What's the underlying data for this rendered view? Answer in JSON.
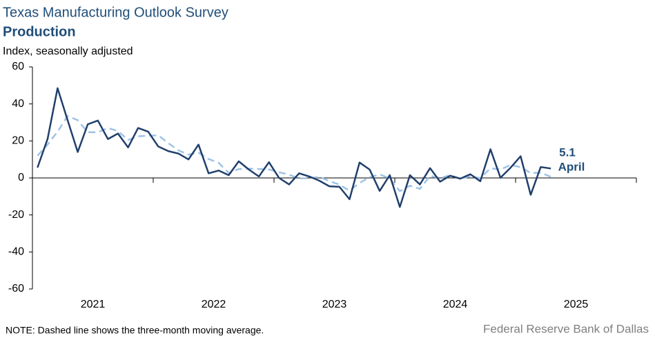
{
  "chart_data": {
    "type": "line",
    "title": "Texas Manufacturing Outlook Survey",
    "subtitle": "Production",
    "y_label": "Index, seasonally adjusted",
    "note": "NOTE: Dashed line shows the three-month  moving average.",
    "source": "Federal Reserve Bank of Dallas",
    "annotations": [
      "5.1",
      "April"
    ],
    "x": [
      2021.042,
      2021.125,
      2021.208,
      2021.292,
      2021.375,
      2021.458,
      2021.542,
      2021.625,
      2021.708,
      2021.792,
      2021.875,
      2021.958,
      2022.042,
      2022.125,
      2022.208,
      2022.292,
      2022.375,
      2022.458,
      2022.542,
      2022.625,
      2022.708,
      2022.792,
      2022.875,
      2022.958,
      2023.042,
      2023.125,
      2023.208,
      2023.292,
      2023.375,
      2023.458,
      2023.542,
      2023.625,
      2023.708,
      2023.792,
      2023.875,
      2023.958,
      2024.042,
      2024.125,
      2024.208,
      2024.292,
      2024.375,
      2024.458,
      2024.542,
      2024.625,
      2024.708,
      2024.792,
      2024.875,
      2024.958,
      2025.042,
      2025.125,
      2025.208,
      2025.292
    ],
    "series": [
      {
        "name": "Production",
        "color": "#203f6c",
        "dashed": false,
        "values": [
          5.6,
          21,
          48.5,
          31,
          14,
          29,
          31,
          21,
          24,
          16.5,
          27,
          25,
          17,
          14.5,
          13.2,
          10,
          18,
          2.5,
          4,
          1.5,
          9,
          4.5,
          0.8,
          8.5,
          0,
          -3.5,
          2.5,
          0.8,
          -1.5,
          -4.5,
          -4.8,
          -11.5,
          8.3,
          4.5,
          -7,
          1.5,
          -15.7,
          1.5,
          -3.5,
          5.3,
          -2,
          1.2,
          -0.4,
          2,
          -1.8,
          15.5,
          0.1,
          5.5,
          11.7,
          -9.1,
          5.9,
          5.1
        ]
      },
      {
        "name": "Three-month moving average",
        "color": "#9dc3e6",
        "dashed": true,
        "values": [
          12,
          18,
          25,
          33.5,
          31.2,
          24.7,
          24.7,
          27,
          25.3,
          20.5,
          22.5,
          22.8,
          23,
          18.8,
          14.9,
          12.6,
          13.7,
          10.2,
          8.2,
          2.7,
          4.8,
          5,
          4.8,
          4.6,
          3.1,
          1.7,
          -0.3,
          -0.1,
          0.6,
          -1.7,
          -3.6,
          -6.9,
          -2.7,
          0.4,
          1.9,
          -0.3,
          -7.1,
          -4.2,
          -5.9,
          1.1,
          -0.1,
          1.5,
          -0.4,
          0.9,
          -0.1,
          5.2,
          4.6,
          7,
          5.8,
          2.7,
          2.8,
          0.6
        ]
      }
    ],
    "xlim": [
      2021,
      2026
    ],
    "xticks": [
      {
        "value": 2021,
        "label": "2021"
      },
      {
        "value": 2022,
        "label": "2022"
      },
      {
        "value": 2023,
        "label": "2023"
      },
      {
        "value": 2024,
        "label": "2024"
      },
      {
        "value": 2025,
        "label": "2025"
      }
    ],
    "ylim": [
      -60,
      60
    ],
    "yticks": [
      -60,
      -40,
      -20,
      0,
      20,
      40,
      60
    ],
    "grid": false
  }
}
